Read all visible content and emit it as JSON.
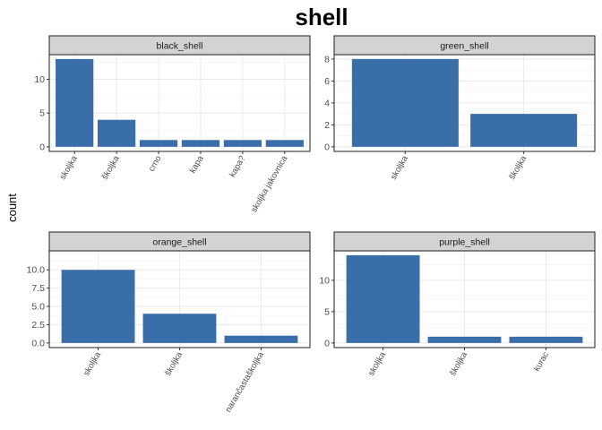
{
  "chart_data": {
    "type": "bar",
    "title": "shell",
    "ylabel": "count",
    "xlabel": "",
    "bar_color": "#3A6EA8",
    "strip_color": "#D3D3D3",
    "facets": [
      {
        "strip_label": "black_shell",
        "categories": [
          "skoljka",
          "školjka",
          "crno",
          "kapa",
          "kapa?",
          "skoljka jakovnica"
        ],
        "values": [
          13,
          4,
          1,
          1,
          1,
          1
        ],
        "ylim": [
          0,
          13.65
        ],
        "yticks": [
          0,
          5,
          10
        ],
        "ytick_labels": [
          "0",
          "5",
          "10"
        ]
      },
      {
        "strip_label": "green_shell",
        "categories": [
          "skoljka",
          "školjka"
        ],
        "values": [
          8,
          3
        ],
        "ylim": [
          0,
          8.4
        ],
        "yticks": [
          0,
          2,
          4,
          6,
          8
        ],
        "ytick_labels": [
          "0",
          "2",
          "4",
          "6",
          "8"
        ]
      },
      {
        "strip_label": "orange_shell",
        "categories": [
          "skoljka",
          "školjka",
          "narančastaškoljka"
        ],
        "values": [
          10,
          4,
          1
        ],
        "ylim": [
          0,
          12.6
        ],
        "yticks": [
          0,
          2.5,
          5,
          7.5,
          10
        ],
        "ytick_labels": [
          "0.0",
          "2.5",
          "5.0",
          "7.5",
          "10.0"
        ]
      },
      {
        "strip_label": "purple_shell",
        "categories": [
          "skoljka",
          "školjka",
          "kurac"
        ],
        "values": [
          14,
          1,
          1
        ],
        "ylim": [
          0,
          14.7
        ],
        "yticks": [
          0,
          5,
          10
        ],
        "ytick_labels": [
          "0",
          "5",
          "10"
        ]
      }
    ]
  }
}
